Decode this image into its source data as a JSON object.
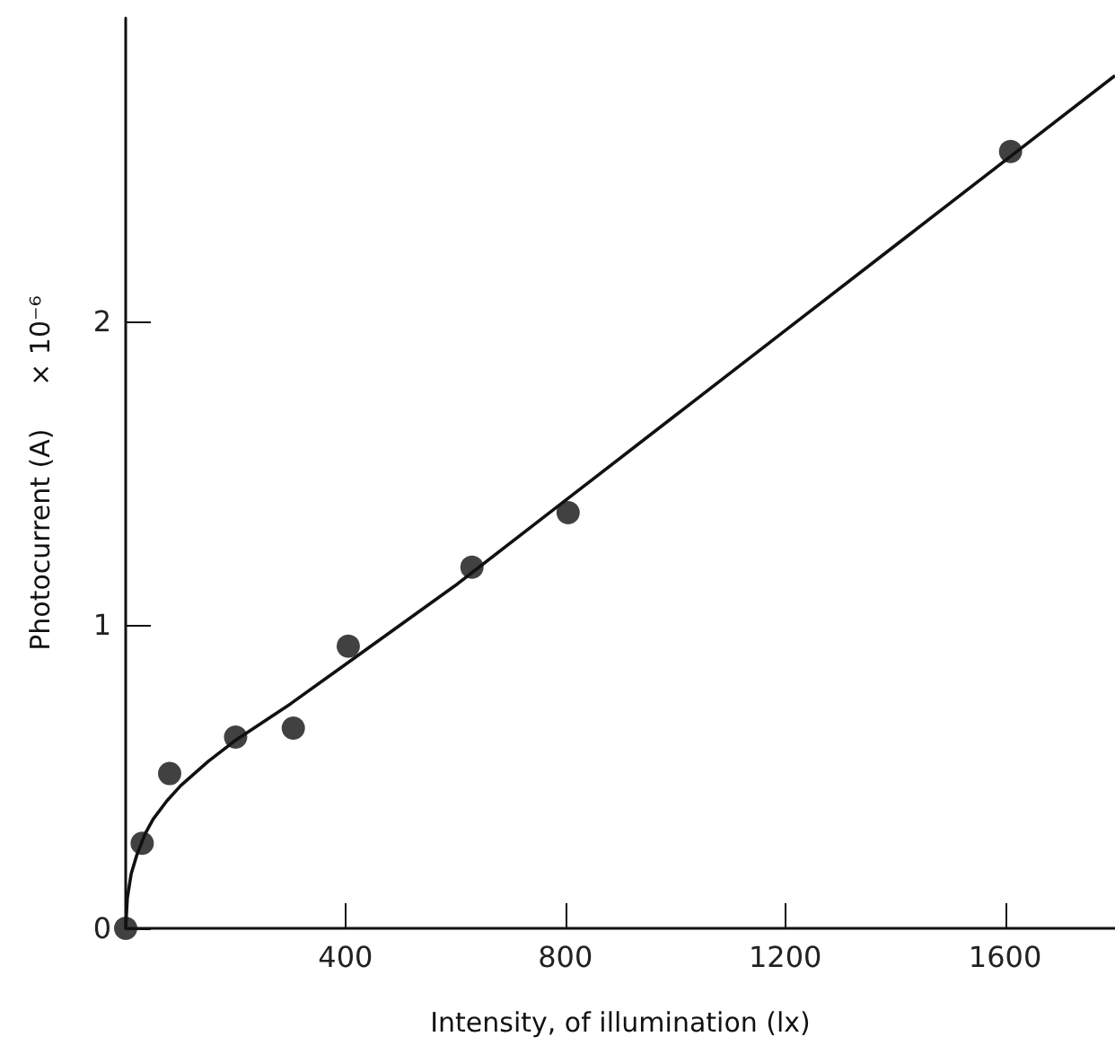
{
  "chart_data": {
    "type": "scatter",
    "xlabel": "Intensity, of illumination (lx)",
    "ylabel": "Photocurrent (A)     × 10⁻⁶",
    "xlim": [
      0,
      1800
    ],
    "xticks": [
      400,
      800,
      1200,
      1600
    ],
    "ylim": [
      0,
      3
    ],
    "yticks": [
      0,
      1,
      2
    ],
    "grid": false,
    "series": [
      {
        "marker": "circle",
        "color": "#111111",
        "x": [
          0,
          30,
          80,
          200,
          305,
          405,
          630,
          805,
          1610
        ],
        "values": [
          0,
          0.28,
          0.51,
          0.63,
          0.66,
          0.93,
          1.19,
          1.37,
          2.56
        ]
      },
      {
        "type": "line",
        "marker": "none",
        "line_style": "solid",
        "color": "#111111",
        "x": [
          0,
          3,
          10,
          20,
          35,
          50,
          75,
          100,
          150,
          200,
          300,
          400,
          500,
          600,
          800,
          1000,
          1200,
          1400,
          1600,
          1800
        ],
        "values": [
          0,
          0.1,
          0.18,
          0.24,
          0.31,
          0.36,
          0.42,
          0.47,
          0.55,
          0.62,
          0.74,
          0.87,
          1.0,
          1.13,
          1.41,
          1.69,
          1.97,
          2.25,
          2.53,
          2.81
        ]
      }
    ]
  }
}
